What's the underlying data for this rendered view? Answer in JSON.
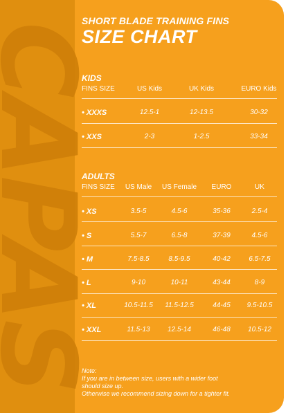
{
  "header": {
    "subtitle": "SHORT BLADE TRAINING FINS",
    "title": "SIZE CHART"
  },
  "brand": "CAPAS",
  "kids": {
    "title": "KIDS",
    "columns": [
      "FINS SIZE",
      "US Kids",
      "UK Kids",
      "EURO Kids"
    ],
    "rows": [
      [
        "• XXXS",
        "12.5-1",
        "12-13.5",
        "30-32"
      ],
      [
        "• XXS",
        "2-3",
        "1-2.5",
        "33-34"
      ]
    ]
  },
  "adults": {
    "title": "ADULTS",
    "columns": [
      "FINS SIZE",
      "US Male",
      "US Female",
      "EURO",
      "UK"
    ],
    "rows": [
      [
        "• XS",
        "3.5-5",
        "4.5-6",
        "35-36",
        "2.5-4"
      ],
      [
        "• S",
        "5.5-7",
        "6.5-8",
        "37-39",
        "4.5-6"
      ],
      [
        "• M",
        "7.5-8.5",
        "8.5-9.5",
        "40-42",
        "6.5-7.5"
      ],
      [
        "• L",
        "9-10",
        "10-11",
        "43-44",
        "8-9"
      ],
      [
        "• XL",
        "10.5-11.5",
        "11.5-12.5",
        "44-45",
        "9.5-10.5"
      ],
      [
        "• XXL",
        "11.5-13",
        "12.5-14",
        "46-48",
        "10.5-12"
      ]
    ]
  },
  "note": {
    "line1": "Note:",
    "line2": "If you are in between size, users with a wider foot",
    "line3": "should size up.",
    "line4": "Otherwise we recommend sizing down for a tighter fit."
  },
  "colors": {
    "background": "#f6a01d",
    "strip": "#e08f0f",
    "brand_text": "#cf7f09",
    "text": "#ffffff"
  }
}
